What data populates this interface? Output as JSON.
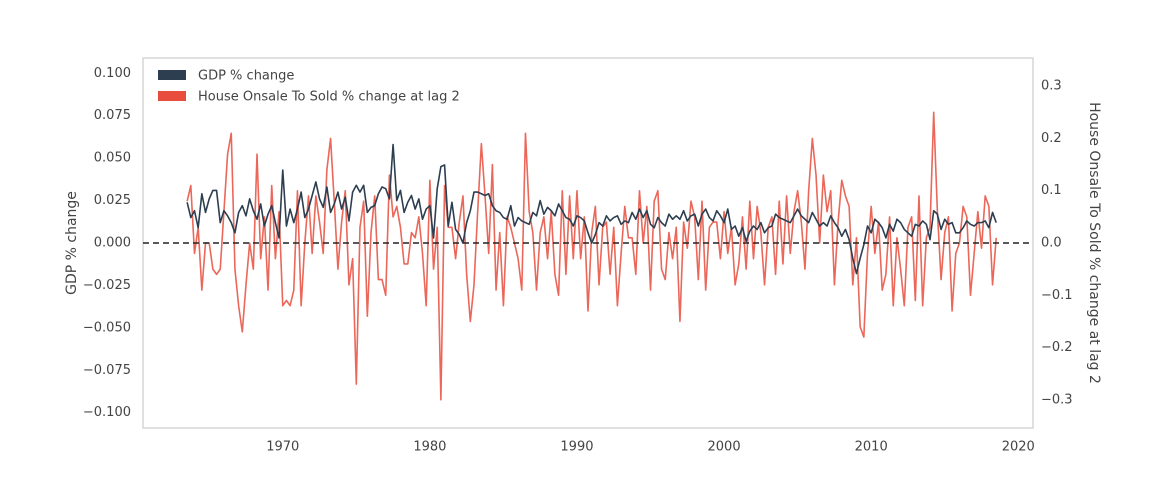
{
  "chart_data": {
    "type": "line",
    "xlabel": null,
    "ylabel": "GDP % change",
    "y2label": "House Onsale To Sold % change at lag 2",
    "xlim": [
      1960.5,
      2021
    ],
    "xticks": [
      1970,
      1980,
      1990,
      2000,
      2010,
      2020
    ],
    "ylim": [
      -0.109,
      0.109
    ],
    "yticks": [
      {
        "value": -0.1,
        "label": "−0.100"
      },
      {
        "value": -0.075,
        "label": "−0.075"
      },
      {
        "value": -0.05,
        "label": "−0.050"
      },
      {
        "value": -0.025,
        "label": "−0.025"
      },
      {
        "value": 0,
        "label": "0.000"
      },
      {
        "value": 0.025,
        "label": "0.025"
      },
      {
        "value": 0.05,
        "label": "0.050"
      },
      {
        "value": 0.075,
        "label": "0.075"
      },
      {
        "value": 0.1,
        "label": "0.100"
      }
    ],
    "y2lim": [
      -0.354,
      0.354
    ],
    "y2ticks": [
      {
        "value": -0.3,
        "label": "−0.3"
      },
      {
        "value": -0.2,
        "label": "−0.2"
      },
      {
        "value": -0.1,
        "label": "−0.1"
      },
      {
        "value": 0,
        "label": "0.0"
      },
      0.1,
      0.2,
      0.3
    ],
    "hline": 0,
    "grid": false,
    "legend": "upper left",
    "x": [
      1963.5,
      1963.75,
      1964,
      1964.25,
      1964.5,
      1964.75,
      1965,
      1965.25,
      1965.5,
      1965.75,
      1966,
      1966.25,
      1966.5,
      1966.75,
      1967,
      1967.25,
      1967.5,
      1967.75,
      1968,
      1968.25,
      1968.5,
      1968.75,
      1969,
      1969.25,
      1969.5,
      1969.75,
      1970,
      1970.25,
      1970.5,
      1970.75,
      1971,
      1971.25,
      1971.5,
      1971.75,
      1972,
      1972.25,
      1972.5,
      1972.75,
      1973,
      1973.25,
      1973.5,
      1973.75,
      1974,
      1974.25,
      1974.5,
      1974.75,
      1975,
      1975.25,
      1975.5,
      1975.75,
      1976,
      1976.25,
      1976.5,
      1976.75,
      1977,
      1977.25,
      1977.5,
      1977.75,
      1978,
      1978.25,
      1978.5,
      1978.75,
      1979,
      1979.25,
      1979.5,
      1979.75,
      1980,
      1980.25,
      1980.5,
      1980.75,
      1981,
      1981.25,
      1981.5,
      1981.75,
      1982,
      1982.25,
      1982.5,
      1982.75,
      1983,
      1983.25,
      1983.5,
      1983.75,
      1984,
      1984.25,
      1984.5,
      1984.75,
      1985,
      1985.25,
      1985.5,
      1985.75,
      1986,
      1986.25,
      1986.5,
      1986.75,
      1987,
      1987.25,
      1987.5,
      1987.75,
      1988,
      1988.25,
      1988.5,
      1988.75,
      1989,
      1989.25,
      1989.5,
      1989.75,
      1990,
      1990.25,
      1990.5,
      1990.75,
      1991,
      1991.25,
      1991.5,
      1991.75,
      1992,
      1992.25,
      1992.5,
      1992.75,
      1993,
      1993.25,
      1993.5,
      1993.75,
      1994,
      1994.25,
      1994.5,
      1994.75,
      1995,
      1995.25,
      1995.5,
      1995.75,
      1996,
      1996.25,
      1996.5,
      1996.75,
      1997,
      1997.25,
      1997.5,
      1997.75,
      1998,
      1998.25,
      1998.5,
      1998.75,
      1999,
      1999.25,
      1999.5,
      1999.75,
      2000,
      2000.25,
      2000.5,
      2000.75,
      2001,
      2001.25,
      2001.5,
      2001.75,
      2002,
      2002.25,
      2002.5,
      2002.75,
      2003,
      2003.25,
      2003.5,
      2003.75,
      2004,
      2004.25,
      2004.5,
      2004.75,
      2005,
      2005.25,
      2005.5,
      2005.75,
      2006,
      2006.25,
      2006.5,
      2006.75,
      2007,
      2007.25,
      2007.5,
      2007.75,
      2008,
      2008.25,
      2008.5,
      2008.75,
      2009,
      2009.25,
      2009.5,
      2009.75,
      2010,
      2010.25,
      2010.5,
      2010.75,
      2011,
      2011.25,
      2011.5,
      2011.75,
      2012,
      2012.25,
      2012.5,
      2012.75,
      2013,
      2013.25,
      2013.5,
      2013.75,
      2014,
      2014.25,
      2014.5,
      2014.75,
      2015,
      2015.25,
      2015.5,
      2015.75,
      2016,
      2016.25,
      2016.5,
      2016.75,
      2017,
      2017.25,
      2017.5,
      2017.75,
      2018,
      2018.25,
      2018.5
    ],
    "series": [
      {
        "name": "GDP % change",
        "color": "#2c3e50",
        "axis": "y",
        "values": [
          0.024,
          0.015,
          0.019,
          0.009,
          0.029,
          0.018,
          0.026,
          0.031,
          0.031,
          0.012,
          0.019,
          0.016,
          0.012,
          0.006,
          0.018,
          0.022,
          0.016,
          0.026,
          0.019,
          0.014,
          0.023,
          0.01,
          0.017,
          0.022,
          0.012,
          0.003,
          0.043,
          0.01,
          0.02,
          0.012,
          0.02,
          0.03,
          0.015,
          0.02,
          0.028,
          0.036,
          0.026,
          0.021,
          0.033,
          0.018,
          0.023,
          0.03,
          0.02,
          0.027,
          0.013,
          0.03,
          0.034,
          0.03,
          0.034,
          0.018,
          0.021,
          0.022,
          0.029,
          0.033,
          0.032,
          0.026,
          0.058,
          0.025,
          0.031,
          0.018,
          0.024,
          0.028,
          0.02,
          0.026,
          0.014,
          0.02,
          0.022,
          0.003,
          0.032,
          0.045,
          0.046,
          0.01,
          0.024,
          0.008,
          0.005,
          0.0,
          0.012,
          0.019,
          0.03,
          0.03,
          0.029,
          0.028,
          0.029,
          0.022,
          0.019,
          0.018,
          0.015,
          0.014,
          0.022,
          0.01,
          0.015,
          0.013,
          0.012,
          0.011,
          0.018,
          0.016,
          0.025,
          0.017,
          0.021,
          0.019,
          0.016,
          0.023,
          0.019,
          0.015,
          0.014,
          0.01,
          0.016,
          0.015,
          0.013,
          0.006,
          0.0,
          0.005,
          0.012,
          0.01,
          0.016,
          0.013,
          0.015,
          0.016,
          0.011,
          0.013,
          0.012,
          0.018,
          0.014,
          0.02,
          0.015,
          0.019,
          0.011,
          0.009,
          0.015,
          0.012,
          0.01,
          0.017,
          0.014,
          0.016,
          0.014,
          0.019,
          0.013,
          0.016,
          0.017,
          0.01,
          0.017,
          0.02,
          0.015,
          0.013,
          0.019,
          0.016,
          0.012,
          0.02,
          0.008,
          0.01,
          0.004,
          0.009,
          0.001,
          0.007,
          0.01,
          0.008,
          0.012,
          0.006,
          0.009,
          0.01,
          0.017,
          0.015,
          0.014,
          0.013,
          0.012,
          0.016,
          0.02,
          0.016,
          0.014,
          0.012,
          0.018,
          0.014,
          0.01,
          0.012,
          0.01,
          0.016,
          0.012,
          0.009,
          0.004,
          0.008,
          0.002,
          -0.009,
          -0.018,
          -0.009,
          -0.001,
          0.01,
          0.006,
          0.014,
          0.012,
          0.009,
          0.003,
          0.011,
          0.007,
          0.014,
          0.012,
          0.008,
          0.006,
          0.004,
          0.011,
          0.01,
          0.013,
          0.011,
          0.002,
          0.019,
          0.017,
          0.008,
          0.014,
          0.011,
          0.012,
          0.006,
          0.006,
          0.009,
          0.013,
          0.011,
          0.01,
          0.012,
          0.012,
          0.013,
          0.009,
          0.018,
          0.012
        ]
      },
      {
        "name": "House Onsale To Sold % change at lag 2",
        "color": "#e74c3c",
        "axis": "y2",
        "values": [
          0.08,
          0.11,
          -0.02,
          0.03,
          -0.09,
          0.0,
          0.0,
          -0.05,
          -0.06,
          -0.05,
          0.06,
          0.17,
          0.21,
          -0.05,
          -0.12,
          -0.17,
          -0.08,
          0.0,
          -0.05,
          0.17,
          -0.03,
          0.05,
          -0.09,
          0.11,
          -0.03,
          0.06,
          -0.12,
          -0.11,
          -0.12,
          -0.09,
          0.1,
          -0.12,
          0.0,
          0.09,
          -0.02,
          0.09,
          0.04,
          -0.02,
          0.14,
          0.2,
          0.08,
          -0.05,
          0.04,
          0.1,
          -0.08,
          -0.03,
          -0.27,
          0.03,
          0.08,
          -0.14,
          0.02,
          0.09,
          -0.07,
          -0.07,
          -0.1,
          0.13,
          0.05,
          0.07,
          0.03,
          -0.04,
          -0.04,
          0.02,
          0.01,
          0.05,
          -0.02,
          -0.12,
          0.12,
          -0.05,
          0.03,
          -0.3,
          0.11,
          0.03,
          0.03,
          -0.03,
          0.04,
          0.09,
          -0.06,
          -0.15,
          -0.08,
          0.06,
          0.19,
          0.09,
          -0.02,
          0.15,
          -0.09,
          0.02,
          -0.12,
          0.05,
          0.03,
          0.0,
          -0.03,
          -0.09,
          0.21,
          0.06,
          0.02,
          -0.09,
          0.02,
          0.05,
          -0.03,
          0.06,
          -0.06,
          -0.1,
          0.1,
          -0.06,
          0.09,
          -0.03,
          0.1,
          -0.03,
          0.05,
          -0.13,
          0.02,
          0.07,
          -0.08,
          0.03,
          0.04,
          -0.06,
          0.03,
          -0.12,
          -0.02,
          0.07,
          0.01,
          0.01,
          -0.06,
          0.1,
          0.0,
          0.07,
          -0.09,
          0.08,
          0.1,
          -0.05,
          -0.07,
          0.02,
          -0.03,
          0.03,
          -0.15,
          0.04,
          -0.01,
          0.08,
          0.05,
          -0.07,
          0.08,
          -0.09,
          0.03,
          0.04,
          0.04,
          -0.03,
          0.06,
          -0.02,
          0.03,
          -0.08,
          -0.04,
          0.05,
          -0.05,
          0.08,
          -0.03,
          0.07,
          0.02,
          -0.08,
          0.03,
          0.05,
          -0.06,
          0.08,
          -0.04,
          0.09,
          -0.02,
          0.06,
          0.1,
          0.04,
          -0.05,
          0.1,
          0.2,
          0.13,
          0.0,
          0.13,
          0.06,
          0.1,
          -0.08,
          0.04,
          0.12,
          0.09,
          0.07,
          -0.08,
          0.01,
          -0.16,
          -0.18,
          -0.02,
          0.07,
          -0.02,
          0.04,
          -0.09,
          -0.06,
          0.05,
          -0.12,
          0.01,
          -0.05,
          -0.12,
          0.03,
          0.05,
          -0.11,
          0.09,
          -0.12,
          0.01,
          0.03,
          0.25,
          0.06,
          -0.07,
          0.02,
          0.05,
          -0.13,
          -0.02,
          0.0,
          0.07,
          0.05,
          -0.1,
          -0.02,
          0.06,
          -0.01,
          0.09,
          0.07,
          -0.08,
          0.01
        ]
      }
    ]
  }
}
